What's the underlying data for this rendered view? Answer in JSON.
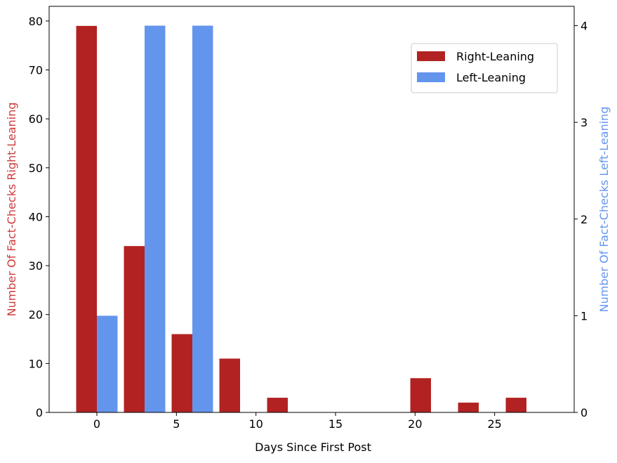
{
  "chart_data": {
    "type": "bar",
    "title": "",
    "xlabel": "Days Since First Post",
    "ylabel_left": "Number Of Fact-Checks Right-Leaning",
    "ylabel_right": "Number Of Fact-Checks Left-Leaning",
    "xlim": [
      -3,
      30
    ],
    "ylim_left": [
      0,
      83
    ],
    "ylim_right": [
      0,
      4.2
    ],
    "x_ticks": [
      0,
      5,
      10,
      15,
      20,
      25
    ],
    "y_left_ticks": [
      0,
      10,
      20,
      30,
      40,
      50,
      60,
      70,
      80
    ],
    "y_right_ticks": [
      0,
      1,
      2,
      3,
      4
    ],
    "bar_width": 1.3,
    "legend_position": "top-right",
    "grid": false,
    "series": [
      {
        "name": "Right-Leaning",
        "axis": "left",
        "color": "#b22222",
        "x": [
          -0.65,
          2.35,
          5.35,
          8.35,
          11.35,
          20.35,
          23.35,
          26.35
        ],
        "values": [
          79,
          34,
          16,
          11,
          3,
          7,
          2,
          3
        ]
      },
      {
        "name": "Left-Leaning",
        "axis": "right",
        "color": "#6495ed",
        "x": [
          0.65,
          3.65,
          6.65
        ],
        "values": [
          1,
          4,
          4
        ]
      }
    ]
  }
}
